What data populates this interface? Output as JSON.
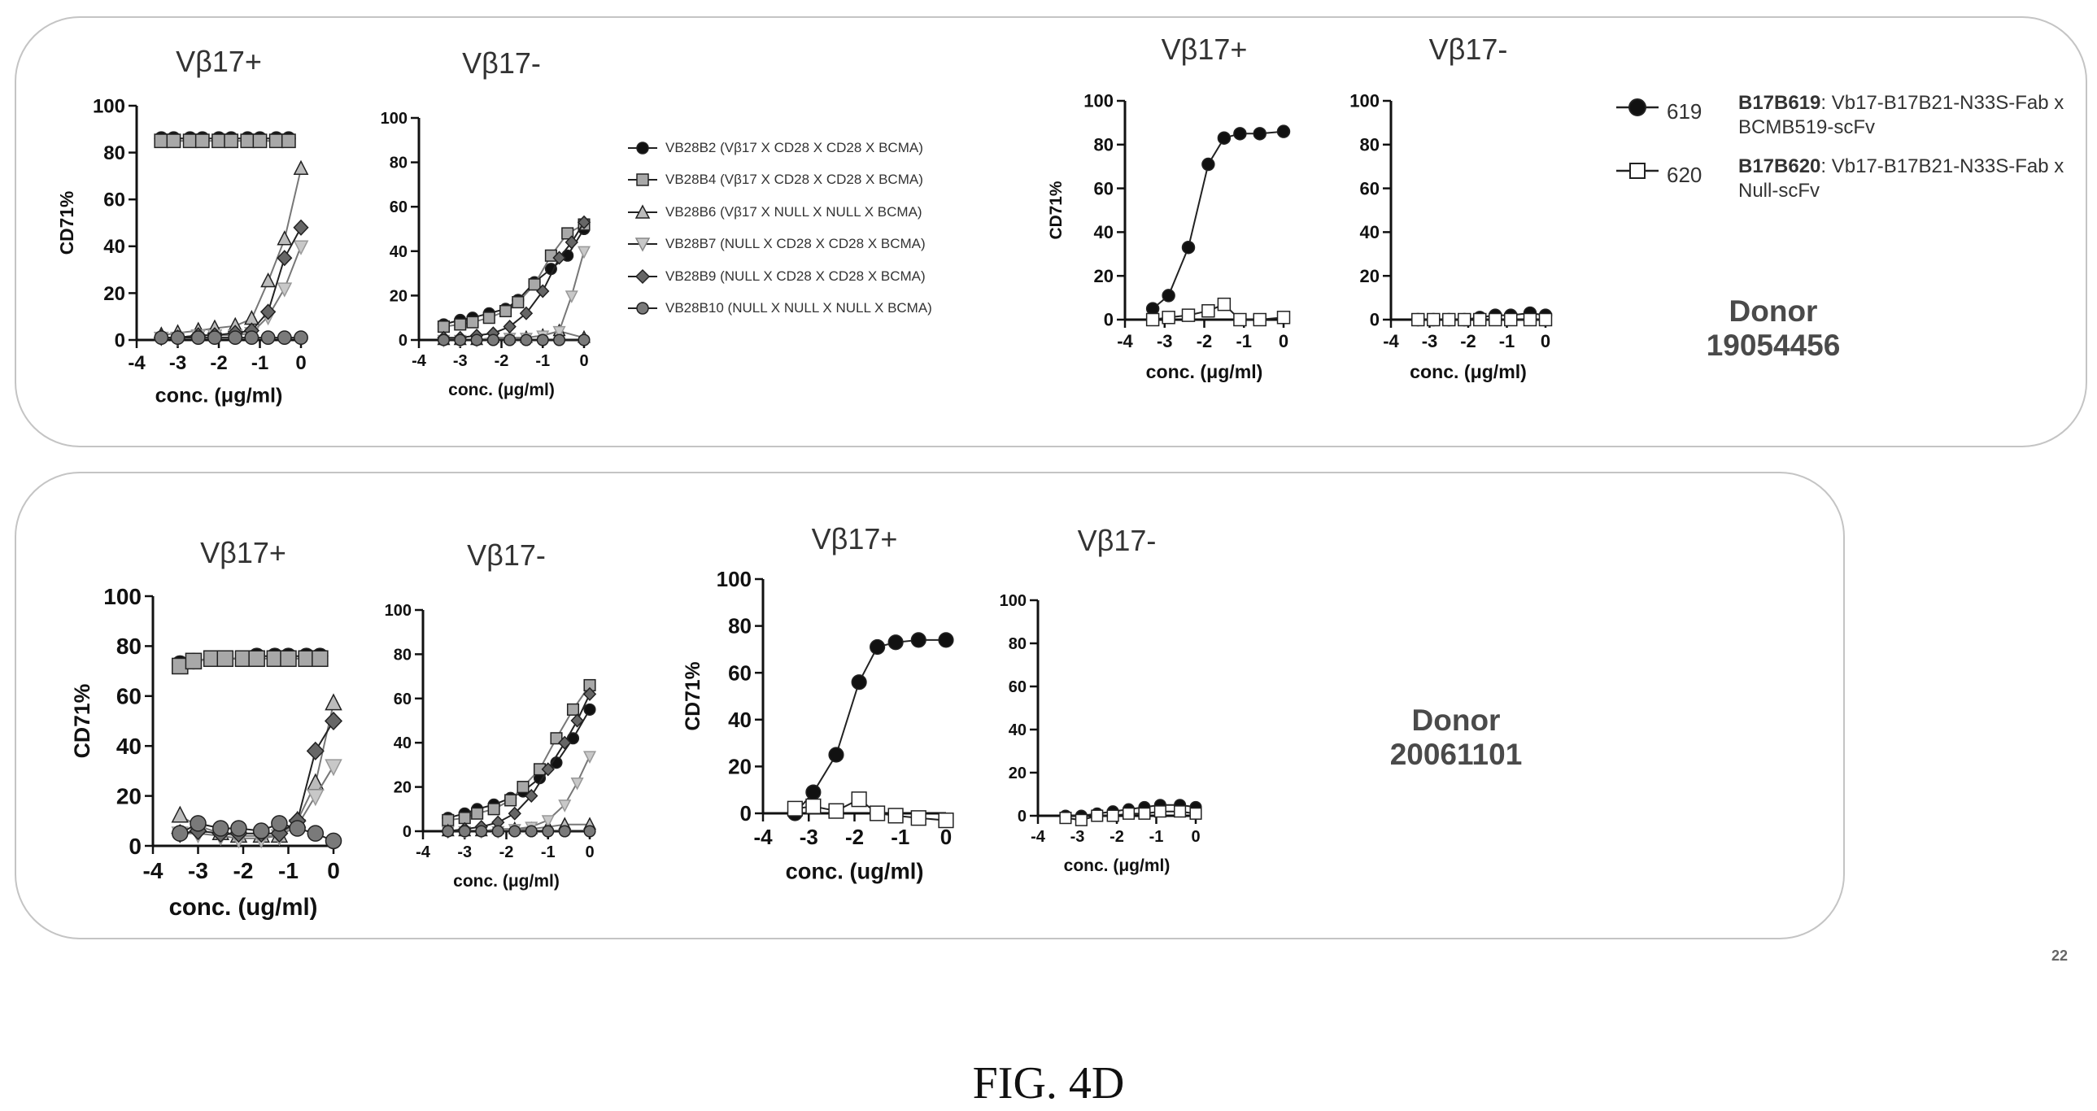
{
  "donors": [
    "Donor\n19054456",
    "Donor\n20061101"
  ],
  "legend_a": [
    {
      "label": "VB28B2 (Vβ17 X CD28 X CD28 X BCMA)",
      "marker": "circle",
      "fill": "#111111"
    },
    {
      "label": "VB28B4 (Vβ17 X CD28 X CD28 X BCMA)",
      "marker": "square",
      "fill": "#a8a8a8"
    },
    {
      "label": "VB28B6 (Vβ17 X NULL X NULL X BCMA)",
      "marker": "triangle",
      "fill": "#bcbcbc"
    },
    {
      "label": "VB28B7 (NULL X CD28 X CD28 X BCMA)",
      "marker": "tri-down",
      "fill": "#c8c8c8"
    },
    {
      "label": "VB28B9 (NULL X CD28 X CD28 X BCMA)",
      "marker": "diamond",
      "fill": "#666666"
    },
    {
      "label": "VB28B10 (NULL X NULL X NULL X BCMA)",
      "marker": "circle",
      "fill": "#7a7a7a"
    }
  ],
  "legend_b": [
    {
      "code": "619",
      "name": "B17B619",
      "desc": ": Vb17-B17B21-N33S-Fab x BCMB519-scFv",
      "marker": "circle",
      "fill": "#111111"
    },
    {
      "code": "620",
      "name": "B17B620",
      "desc": ": Vb17-B17B21-N33S-Fab x Null-scFv",
      "marker": "square",
      "fill": "#ffffff"
    }
  ],
  "figure_caption": "FIG. 4D",
  "page_number": "22",
  "chart_data": [
    {
      "type": "line",
      "title": "Vβ17+",
      "ylabel": "CD71%",
      "xlabel": "conc. (μg/ml)",
      "xlim": [
        -4,
        0
      ],
      "ylim": [
        0,
        100
      ],
      "xticks": [
        -4,
        -3,
        -2,
        -1,
        0
      ],
      "yticks": [
        0,
        20,
        40,
        60,
        80,
        100
      ],
      "series": [
        {
          "marker": "circle",
          "fill": "#111111",
          "x": [
            -3.4,
            -3.1,
            -2.7,
            -2.4,
            -2.0,
            -1.7,
            -1.3,
            -1.0,
            -0.6,
            -0.3
          ],
          "y": [
            86,
            86,
            86,
            86,
            86,
            86,
            86,
            86,
            86,
            86
          ]
        },
        {
          "marker": "square",
          "fill": "#a8a8a8",
          "x": [
            -3.4,
            -3.1,
            -2.7,
            -2.4,
            -2.0,
            -1.7,
            -1.3,
            -1.0,
            -0.6,
            -0.3
          ],
          "y": [
            85,
            85,
            85,
            85,
            85,
            85,
            85,
            85,
            85,
            85
          ]
        },
        {
          "marker": "triangle",
          "fill": "#bcbcbc",
          "x": [
            -3.4,
            -3.0,
            -2.5,
            -2.1,
            -1.6,
            -1.2,
            -0.8,
            -0.4,
            0.0
          ],
          "y": [
            2,
            3,
            4,
            5,
            6,
            9,
            25,
            43,
            73
          ]
        },
        {
          "marker": "tri-down",
          "fill": "#c8c8c8",
          "x": [
            -3.4,
            -3.0,
            -2.5,
            -2.1,
            -1.6,
            -1.2,
            -0.8,
            -0.4,
            0.0
          ],
          "y": [
            1,
            1,
            2,
            2,
            2,
            3,
            10,
            22,
            40
          ]
        },
        {
          "marker": "diamond",
          "fill": "#666666",
          "x": [
            -3.4,
            -3.0,
            -2.5,
            -2.1,
            -1.6,
            -1.2,
            -0.8,
            -0.4,
            0.0
          ],
          "y": [
            1,
            1,
            2,
            2,
            3,
            4,
            12,
            35,
            48
          ]
        },
        {
          "marker": "circle",
          "fill": "#7a7a7a",
          "x": [
            -3.4,
            -3.0,
            -2.5,
            -2.1,
            -1.6,
            -1.2,
            -0.8,
            -0.4,
            0.0
          ],
          "y": [
            1,
            1,
            1,
            1,
            1,
            1,
            1,
            1,
            1
          ]
        }
      ]
    },
    {
      "type": "line",
      "title": "Vβ17-",
      "ylabel": "",
      "xlabel": "conc. (μg/ml)",
      "xlim": [
        -4,
        0
      ],
      "ylim": [
        0,
        100
      ],
      "xticks": [
        -4,
        -3,
        -2,
        -1,
        0
      ],
      "yticks": [
        0,
        20,
        40,
        60,
        80,
        100
      ],
      "series": [
        {
          "marker": "circle",
          "fill": "#111111",
          "x": [
            -3.4,
            -3.0,
            -2.7,
            -2.3,
            -1.9,
            -1.6,
            -1.2,
            -0.8,
            -0.4,
            0.0
          ],
          "y": [
            7,
            9,
            10,
            12,
            14,
            18,
            26,
            32,
            38,
            50
          ]
        },
        {
          "marker": "square",
          "fill": "#a8a8a8",
          "x": [
            -3.4,
            -3.0,
            -2.7,
            -2.3,
            -1.9,
            -1.6,
            -1.2,
            -0.8,
            -0.4,
            0.0
          ],
          "y": [
            6,
            7,
            8,
            10,
            13,
            17,
            25,
            38,
            48,
            52
          ]
        },
        {
          "marker": "triangle",
          "fill": "#bcbcbc",
          "x": [
            -3.4,
            -3.0,
            -2.6,
            -2.2,
            -1.8,
            -1.4,
            -1.0,
            -0.6,
            0.0
          ],
          "y": [
            0,
            0,
            0,
            1,
            1,
            1,
            2,
            4,
            1
          ]
        },
        {
          "marker": "tri-down",
          "fill": "#c8c8c8",
          "x": [
            -3.4,
            -3.0,
            -2.6,
            -2.2,
            -1.8,
            -1.4,
            -1.0,
            -0.6,
            -0.3,
            0.0
          ],
          "y": [
            0,
            0,
            0,
            1,
            1,
            1,
            2,
            4,
            20,
            40
          ]
        },
        {
          "marker": "diamond",
          "fill": "#666666",
          "x": [
            -3.4,
            -3.0,
            -2.6,
            -2.2,
            -1.8,
            -1.4,
            -1.0,
            -0.6,
            -0.3,
            0.0
          ],
          "y": [
            1,
            1,
            2,
            3,
            6,
            12,
            22,
            37,
            44,
            53
          ]
        },
        {
          "marker": "circle",
          "fill": "#7a7a7a",
          "x": [
            -3.4,
            -3.0,
            -2.6,
            -2.2,
            -1.8,
            -1.4,
            -1.0,
            -0.6,
            0.0
          ],
          "y": [
            0,
            0,
            0,
            0,
            0,
            0,
            0,
            0,
            0
          ]
        }
      ]
    },
    {
      "type": "line",
      "title": "Vβ17+",
      "ylabel": "CD71%",
      "xlabel": "conc. (μg/ml)",
      "xlim": [
        -4,
        0
      ],
      "ylim": [
        0,
        100
      ],
      "xticks": [
        -4,
        -3,
        -2,
        -1,
        0
      ],
      "yticks": [
        0,
        20,
        40,
        60,
        80,
        100
      ],
      "series": [
        {
          "marker": "circle",
          "fill": "#111111",
          "x": [
            -3.3,
            -2.9,
            -2.4,
            -1.9,
            -1.5,
            -1.1,
            -0.6,
            0.0
          ],
          "y": [
            5,
            11,
            33,
            71,
            83,
            85,
            85,
            86
          ]
        },
        {
          "marker": "square",
          "fill": "#ffffff",
          "x": [
            -3.3,
            -2.9,
            -2.4,
            -1.9,
            -1.5,
            -1.1,
            -0.6,
            0.0
          ],
          "y": [
            0,
            1,
            2,
            4,
            7,
            0,
            0,
            1
          ]
        }
      ]
    },
    {
      "type": "line",
      "title": "Vβ17-",
      "ylabel": "",
      "xlabel": "conc. (μg/ml)",
      "xlim": [
        -4,
        0
      ],
      "ylim": [
        0,
        100
      ],
      "xticks": [
        -4,
        -3,
        -2,
        -1,
        0
      ],
      "yticks": [
        0,
        20,
        40,
        60,
        80,
        100
      ],
      "series": [
        {
          "marker": "circle",
          "fill": "#111111",
          "x": [
            -3.3,
            -2.9,
            -2.5,
            -2.1,
            -1.7,
            -1.3,
            -0.9,
            -0.4,
            0.0
          ],
          "y": [
            0,
            0,
            0,
            0,
            1,
            2,
            2,
            3,
            2
          ]
        },
        {
          "marker": "square",
          "fill": "#ffffff",
          "x": [
            -3.3,
            -2.9,
            -2.5,
            -2.1,
            -1.7,
            -1.3,
            -0.9,
            -0.4,
            0.0
          ],
          "y": [
            0,
            0,
            0,
            0,
            0,
            0,
            0,
            0,
            0
          ]
        }
      ]
    },
    {
      "type": "line",
      "title": "Vβ17+",
      "ylabel": "CD71%",
      "xlabel": "conc. (ug/ml)",
      "xlim": [
        -4,
        0
      ],
      "ylim": [
        0,
        100
      ],
      "xticks": [
        -4,
        -3,
        -2,
        -1,
        0
      ],
      "yticks": [
        0,
        20,
        40,
        60,
        80,
        100
      ],
      "series": [
        {
          "marker": "circle",
          "fill": "#111111",
          "x": [
            -3.4,
            -3.1,
            -2.7,
            -2.4,
            -2.0,
            -1.7,
            -1.3,
            -1.0,
            -0.6,
            -0.3
          ],
          "y": [
            73,
            74,
            75,
            75,
            75,
            76,
            76,
            76,
            76,
            76
          ]
        },
        {
          "marker": "square",
          "fill": "#a8a8a8",
          "x": [
            -3.4,
            -3.1,
            -2.7,
            -2.4,
            -2.0,
            -1.7,
            -1.3,
            -1.0,
            -0.6,
            -0.3
          ],
          "y": [
            72,
            74,
            75,
            75,
            75,
            75,
            75,
            75,
            75,
            75
          ]
        },
        {
          "marker": "triangle",
          "fill": "#bcbcbc",
          "x": [
            -3.4,
            -3.0,
            -2.5,
            -2.1,
            -1.6,
            -1.2,
            -0.8,
            -0.4,
            0.0
          ],
          "y": [
            12,
            8,
            5,
            4,
            4,
            4,
            10,
            25,
            57
          ]
        },
        {
          "marker": "tri-down",
          "fill": "#c8c8c8",
          "x": [
            -3.4,
            -3.0,
            -2.5,
            -2.1,
            -1.6,
            -1.2,
            -0.8,
            -0.4,
            0.0
          ],
          "y": [
            5,
            5,
            4,
            3,
            3,
            4,
            8,
            20,
            32
          ]
        },
        {
          "marker": "diamond",
          "fill": "#666666",
          "x": [
            -3.4,
            -3.0,
            -2.5,
            -2.1,
            -1.6,
            -1.2,
            -0.8,
            -0.4,
            0.0
          ],
          "y": [
            5,
            6,
            5,
            5,
            5,
            5,
            10,
            38,
            50
          ]
        },
        {
          "marker": "circle",
          "fill": "#7a7a7a",
          "x": [
            -3.4,
            -3.0,
            -2.5,
            -2.1,
            -1.6,
            -1.2,
            -0.8,
            -0.4,
            0.0
          ],
          "y": [
            5,
            9,
            7,
            7,
            6,
            9,
            7,
            5,
            2
          ]
        }
      ]
    },
    {
      "type": "line",
      "title": "Vβ17-",
      "ylabel": "",
      "xlabel": "conc. (μg/ml)",
      "xlim": [
        -4,
        0
      ],
      "ylim": [
        0,
        100
      ],
      "xticks": [
        -4,
        -3,
        -2,
        -1,
        0
      ],
      "yticks": [
        0,
        20,
        40,
        60,
        80,
        100
      ],
      "series": [
        {
          "marker": "circle",
          "fill": "#111111",
          "x": [
            -3.4,
            -3.0,
            -2.7,
            -2.3,
            -1.9,
            -1.6,
            -1.2,
            -0.8,
            -0.4,
            0.0
          ],
          "y": [
            6,
            8,
            10,
            12,
            15,
            18,
            24,
            31,
            42,
            55
          ]
        },
        {
          "marker": "square",
          "fill": "#a8a8a8",
          "x": [
            -3.4,
            -3.0,
            -2.7,
            -2.3,
            -1.9,
            -1.6,
            -1.2,
            -0.8,
            -0.4,
            0.0
          ],
          "y": [
            5,
            6,
            8,
            10,
            14,
            20,
            28,
            42,
            55,
            66
          ]
        },
        {
          "marker": "triangle",
          "fill": "#bcbcbc",
          "x": [
            -3.4,
            -3.0,
            -2.6,
            -2.2,
            -1.8,
            -1.4,
            -1.0,
            -0.6,
            0.0
          ],
          "y": [
            0,
            0,
            0,
            1,
            1,
            1,
            2,
            3,
            3
          ]
        },
        {
          "marker": "tri-down",
          "fill": "#c8c8c8",
          "x": [
            -3.4,
            -3.0,
            -2.6,
            -2.2,
            -1.8,
            -1.4,
            -1.0,
            -0.6,
            -0.3,
            0.0
          ],
          "y": [
            0,
            0,
            0,
            0,
            1,
            2,
            5,
            12,
            22,
            34
          ]
        },
        {
          "marker": "diamond",
          "fill": "#666666",
          "x": [
            -3.4,
            -3.0,
            -2.6,
            -2.2,
            -1.8,
            -1.4,
            -1.0,
            -0.6,
            -0.3,
            0.0
          ],
          "y": [
            0,
            1,
            2,
            4,
            8,
            16,
            28,
            40,
            50,
            62
          ]
        },
        {
          "marker": "circle",
          "fill": "#7a7a7a",
          "x": [
            -3.4,
            -3.0,
            -2.6,
            -2.2,
            -1.8,
            -1.4,
            -1.0,
            -0.6,
            0.0
          ],
          "y": [
            0,
            0,
            0,
            0,
            0,
            0,
            0,
            0,
            0
          ]
        }
      ]
    },
    {
      "type": "line",
      "title": "Vβ17+",
      "ylabel": "CD71%",
      "xlabel": "conc. (ug/ml)",
      "xlim": [
        -4,
        0
      ],
      "ylim": [
        0,
        100
      ],
      "xticks": [
        -4,
        -3,
        -2,
        -1,
        0
      ],
      "yticks": [
        0,
        20,
        40,
        60,
        80,
        100
      ],
      "series": [
        {
          "marker": "circle",
          "fill": "#111111",
          "x": [
            -3.3,
            -2.9,
            -2.4,
            -1.9,
            -1.5,
            -1.1,
            -0.6,
            0.0
          ],
          "y": [
            0,
            9,
            25,
            56,
            71,
            73,
            74,
            74
          ]
        },
        {
          "marker": "square",
          "fill": "#ffffff",
          "x": [
            -3.3,
            -2.9,
            -2.4,
            -1.9,
            -1.5,
            -1.1,
            -0.6,
            0.0
          ],
          "y": [
            2,
            3,
            1,
            6,
            0,
            -1,
            -2,
            -3
          ]
        }
      ]
    },
    {
      "type": "line",
      "title": "Vβ17-",
      "ylabel": "",
      "xlabel": "conc. (μg/ml)",
      "xlim": [
        -4,
        0
      ],
      "ylim": [
        0,
        100
      ],
      "xticks": [
        -4,
        -3,
        -2,
        -1,
        0
      ],
      "yticks": [
        0,
        20,
        40,
        60,
        80,
        100
      ],
      "series": [
        {
          "marker": "circle",
          "fill": "#111111",
          "x": [
            -3.3,
            -2.9,
            -2.5,
            -2.1,
            -1.7,
            -1.3,
            -0.9,
            -0.4,
            0.0
          ],
          "y": [
            0,
            0,
            1,
            2,
            3,
            4,
            5,
            5,
            4
          ]
        },
        {
          "marker": "square",
          "fill": "#ffffff",
          "x": [
            -3.3,
            -2.9,
            -2.5,
            -2.1,
            -1.7,
            -1.3,
            -0.9,
            -0.4,
            0.0
          ],
          "y": [
            -1,
            -2,
            0,
            0,
            1,
            1,
            2,
            2,
            1
          ]
        }
      ]
    }
  ]
}
